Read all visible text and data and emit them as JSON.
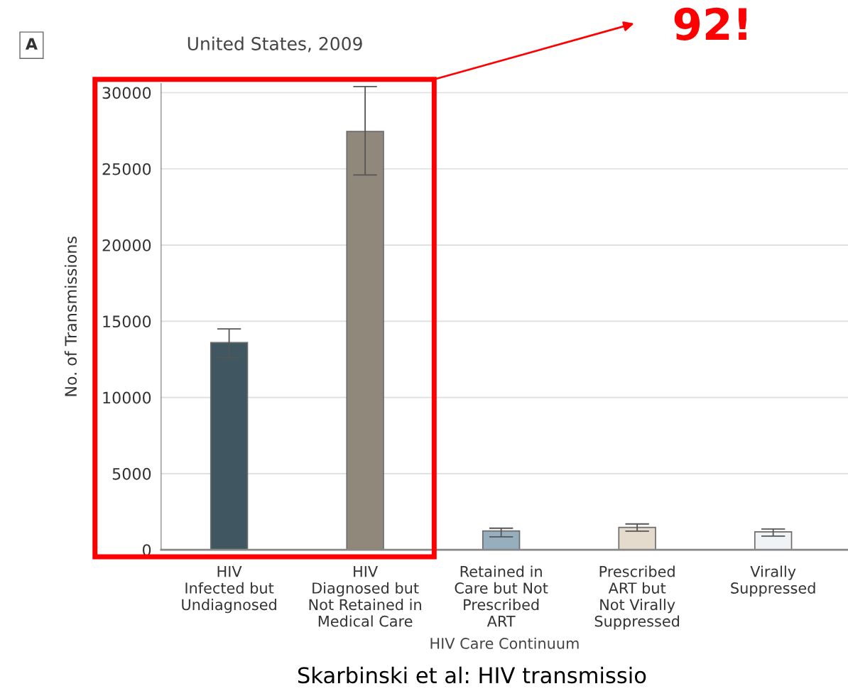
{
  "chart_data": {
    "type": "bar",
    "title": "United States, 2009",
    "xlabel": "HIV Care Continuum",
    "ylabel": "No. of Transmissions",
    "categories": [
      "HIV\nInfected but\nUndiagnosed",
      "HIV\nDiagnosed but\nNot Retained in\nMedical Care",
      "Retained in\nCare but Not\nPrescribed\nART",
      "Prescribed\nART but\nNot Virally\nSuppressed",
      "Virally\nSuppressed"
    ],
    "values": [
      13600,
      27450,
      1240,
      1470,
      1180
    ],
    "colors": [
      "#3a5968",
      "#958878",
      "#8fb0c4",
      "#e8dcc8",
      "#eef3f6"
    ],
    "errors": [
      [
        12600,
        14500
      ],
      [
        24600,
        30400
      ],
      [
        850,
        1420
      ],
      [
        1230,
        1700
      ],
      [
        900,
        1370
      ]
    ],
    "ylim": [
      0,
      30600
    ],
    "yticks": [
      0,
      5000,
      10000,
      15000,
      20000,
      25000,
      30000
    ],
    "grid": "y",
    "legend": false,
    "annotations": [
      "A",
      "92!",
      "Skarbinski et al: HIV transmissio"
    ]
  }
}
